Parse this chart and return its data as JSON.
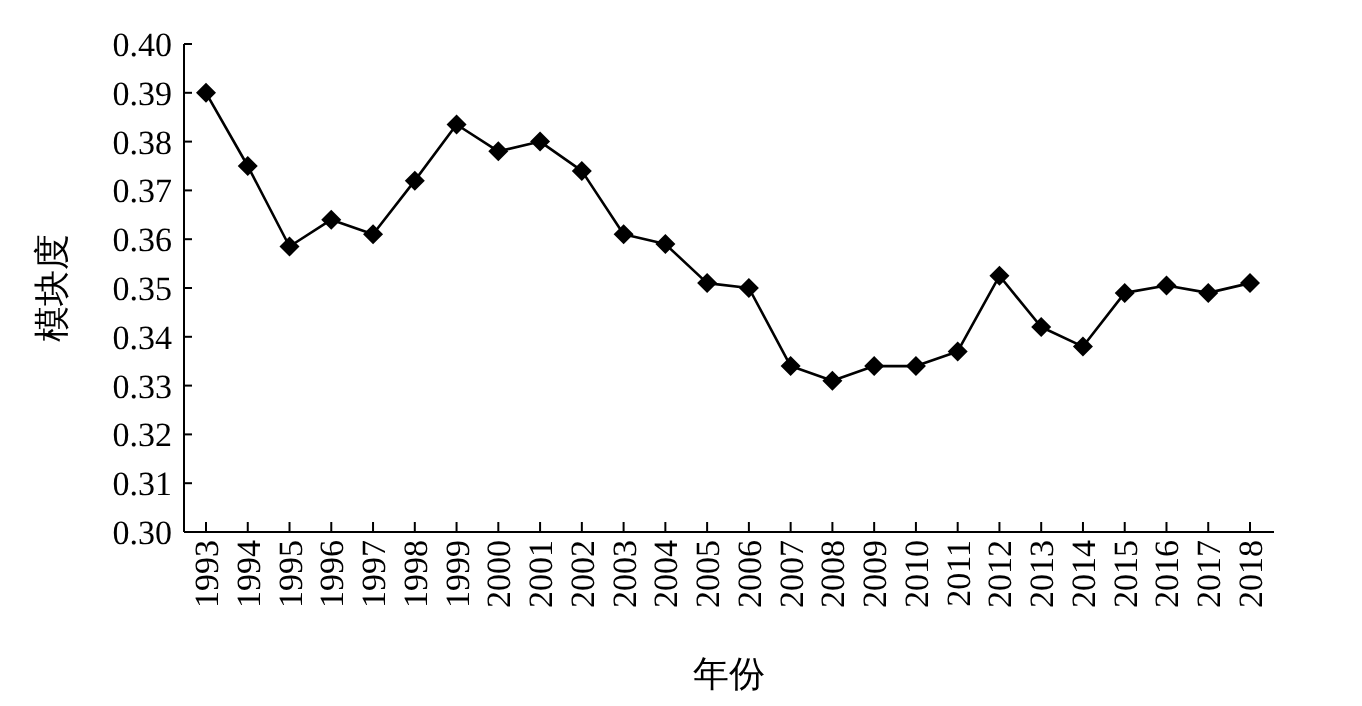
{
  "chart_data": {
    "type": "line",
    "xlabel": "年份",
    "ylabel": "模块度",
    "categories": [
      "1993",
      "1994",
      "1995",
      "1996",
      "1997",
      "1998",
      "1999",
      "2000",
      "2001",
      "2002",
      "2003",
      "2004",
      "2005",
      "2006",
      "2007",
      "2008",
      "2009",
      "2010",
      "2011",
      "2012",
      "2013",
      "2014",
      "2015",
      "2016",
      "2017",
      "2018"
    ],
    "series": [
      {
        "color": "#000000",
        "values": [
          0.39,
          0.375,
          0.3585,
          0.364,
          0.361,
          0.372,
          0.3835,
          0.378,
          0.38,
          0.374,
          0.361,
          0.359,
          0.351,
          0.35,
          0.334,
          0.331,
          0.334,
          0.334,
          0.337,
          0.3525,
          0.342,
          0.338,
          0.349,
          0.3505,
          0.349,
          0.351
        ]
      }
    ],
    "ylim": [
      0.3,
      0.4
    ],
    "yticks": [
      {
        "value": 0.3,
        "label": "0.30"
      },
      {
        "value": 0.31,
        "label": "0.31"
      },
      {
        "value": 0.32,
        "label": "0.32"
      },
      {
        "value": 0.33,
        "label": "0.33"
      },
      {
        "value": 0.34,
        "label": "0.34"
      },
      {
        "value": 0.35,
        "label": "0.35"
      },
      {
        "value": 0.36,
        "label": "0.36"
      },
      {
        "value": 0.37,
        "label": "0.37"
      },
      {
        "value": 0.38,
        "label": "0.38"
      },
      {
        "value": 0.39,
        "label": "0.39"
      },
      {
        "value": 0.4,
        "label": "0.40"
      }
    ],
    "marker": "diamond",
    "line_style": "solid"
  }
}
